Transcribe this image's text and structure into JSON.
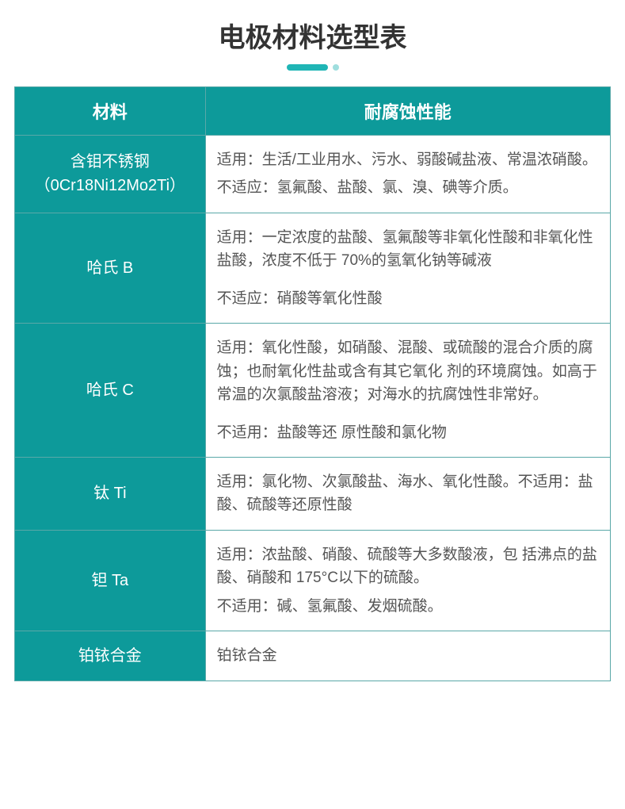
{
  "title": "电极材料选型表",
  "colors": {
    "header_bg": "#0d9a9a",
    "header_text": "#ffffff",
    "border": "#5aa8a8",
    "desc_text": "#555555",
    "title_text": "#333333",
    "deco_bar": "#1fb5b5",
    "deco_dot": "#9fdede"
  },
  "columns": [
    "材料",
    "耐腐蚀性能"
  ],
  "rows": [
    {
      "material_lines": [
        "含钼不锈钢",
        "（0Cr18Ni12Mo2Ti）"
      ],
      "desc": [
        {
          "text": "适用：生活/工业用水、污水、弱酸碱盐液、常温浓硝酸。",
          "cls": ""
        },
        {
          "text": "不适应：氢氟酸、盐酸、氯、溴、碘等介质。",
          "cls": "small-gap"
        }
      ]
    },
    {
      "material_lines": [
        "哈氏 B"
      ],
      "desc": [
        {
          "text": "适用：一定浓度的盐酸、氢氟酸等非氧化性酸和非氧化性盐酸，浓度不低于 70%的氢氧化钠等碱液",
          "cls": ""
        },
        {
          "text": "不适应：硝酸等氧化性酸",
          "cls": "gap"
        }
      ]
    },
    {
      "material_lines": [
        "哈氏 C"
      ],
      "desc": [
        {
          "text": "适用：氧化性酸，如硝酸、混酸、或硫酸的混合介质的腐蚀；也耐氧化性盐或含有其它氧化 剂的环境腐蚀。如高于常温的次氯酸盐溶液；对海水的抗腐蚀性非常好。",
          "cls": ""
        },
        {
          "text": "不适用：盐酸等还 原性酸和氯化物",
          "cls": "gap"
        }
      ]
    },
    {
      "material_lines": [
        "钛 Ti"
      ],
      "desc": [
        {
          "text": "适用：氯化物、次氯酸盐、海水、氧化性酸。不适用：盐酸、硫酸等还原性酸",
          "cls": ""
        }
      ]
    },
    {
      "material_lines": [
        "钽 Ta"
      ],
      "desc": [
        {
          "text": "适用：浓盐酸、硝酸、硫酸等大多数酸液，包 括沸点的盐酸、硝酸和 175°C以下的硫酸。",
          "cls": ""
        },
        {
          "text": "不适用：碱、氢氟酸、发烟硫酸。",
          "cls": "small-gap"
        }
      ]
    },
    {
      "material_lines": [
        "铂铱合金"
      ],
      "desc": [
        {
          "text": "铂铱合金",
          "cls": ""
        }
      ]
    }
  ],
  "table_style": {
    "material_col_width_pct": 32,
    "desc_col_width_pct": 68,
    "title_fontsize": 34,
    "header_fontsize": 22,
    "material_fontsize": 20,
    "desc_fontsize": 19
  }
}
